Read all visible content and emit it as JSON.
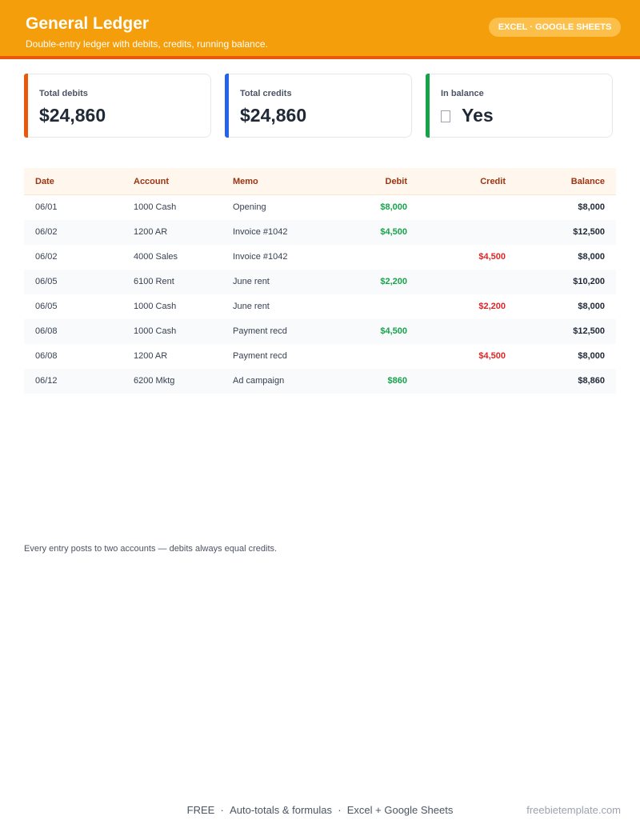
{
  "header": {
    "title": "General Ledger",
    "subtitle": "Double-entry ledger with debits, credits, running balance.",
    "badge": "EXCEL · GOOGLE SHEETS"
  },
  "cards": [
    {
      "label": "Total debits",
      "value": "$24,860",
      "color": "#ea580c"
    },
    {
      "label": "Total credits",
      "value": "$24,860",
      "color": "#2563eb"
    },
    {
      "label": "In balance",
      "value": "Yes",
      "color": "#16a34a"
    }
  ],
  "table": {
    "columns": [
      "Date",
      "Account",
      "Memo",
      "Debit",
      "Credit",
      "Balance"
    ],
    "rows": [
      [
        "06/01",
        "1000 Cash",
        "Opening",
        "$8,000",
        null,
        "$8,000"
      ],
      [
        "06/02",
        "1200 AR",
        "Invoice #1042",
        "$4,500",
        null,
        "$12,500"
      ],
      [
        "06/02",
        "4000 Sales",
        "Invoice #1042",
        null,
        "$4,500",
        "$8,000"
      ],
      [
        "06/05",
        "6100 Rent",
        "June rent",
        "$2,200",
        null,
        "$10,200"
      ],
      [
        "06/05",
        "1000 Cash",
        "June rent",
        null,
        "$2,200",
        "$8,000"
      ],
      [
        "06/08",
        "1000 Cash",
        "Payment recd",
        "$4,500",
        null,
        "$12,500"
      ],
      [
        "06/08",
        "1200 AR",
        "Payment recd",
        null,
        "$4,500",
        "$8,000"
      ],
      [
        "06/12",
        "6200 Mktg",
        "Ad campaign",
        "$860",
        null,
        "$8,860"
      ]
    ]
  },
  "note": "Every entry posts to two accounts — debits always equal credits.",
  "footer": {
    "items": [
      "FREE",
      "Auto-totals & formulas",
      "Excel + Google Sheets"
    ],
    "site": "freebietemplate.com"
  }
}
